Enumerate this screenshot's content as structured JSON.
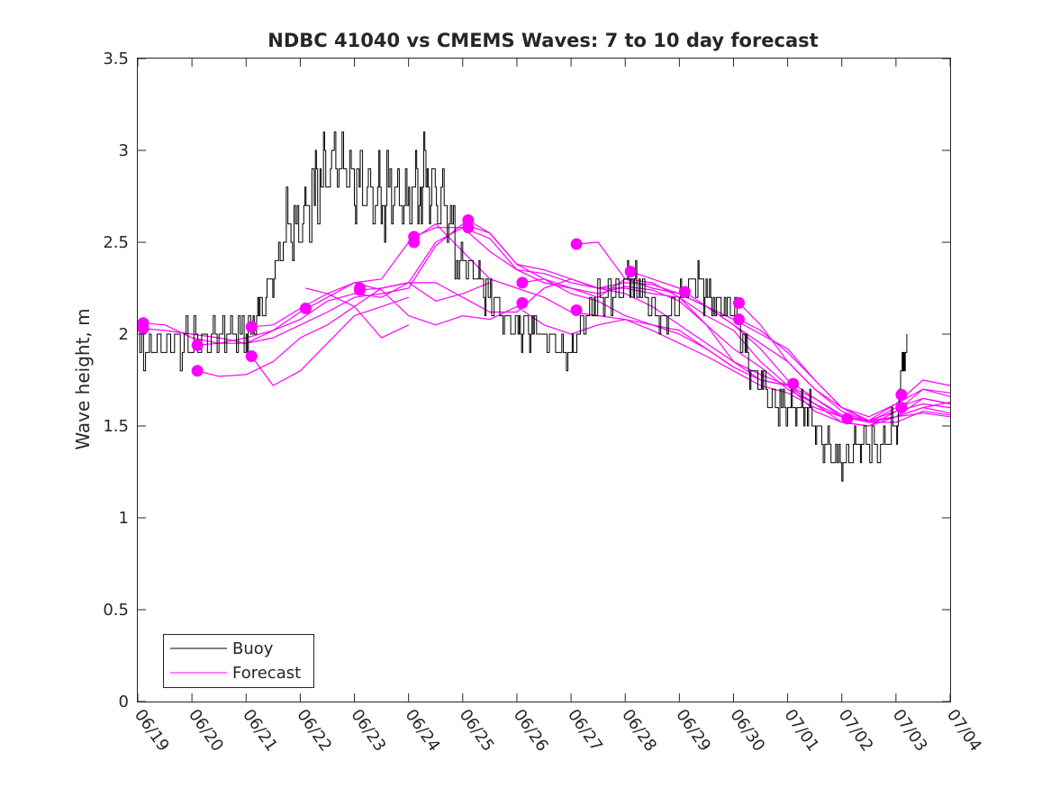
{
  "chart_data": {
    "type": "line",
    "title": "NDBC 41040 vs CMEMS Waves: 7 to 10 day forecast",
    "xlabel": "",
    "ylabel": "Wave height, m",
    "x_ticks": [
      "06/19",
      "06/20",
      "06/21",
      "06/22",
      "06/23",
      "06/24",
      "06/25",
      "06/26",
      "06/27",
      "06/28",
      "06/29",
      "06/30",
      "07/01",
      "07/02",
      "07/03",
      "07/04"
    ],
    "xlim": [
      0,
      15
    ],
    "ylim": [
      0,
      3.5
    ],
    "y_ticks": [
      "0",
      "0.5",
      "1",
      "1.5",
      "2",
      "2.5",
      "3",
      "3.5"
    ],
    "grid": false,
    "legend_position": "bottom-left",
    "colors": {
      "buoy": "#000000",
      "forecast": "#ff00ff"
    },
    "buoy": {
      "name": "Buoy",
      "x": [
        0,
        0.5,
        1,
        1.5,
        2,
        2.3,
        2.6,
        3,
        3.3,
        3.6,
        4,
        4.3,
        4.6,
        5,
        5.3,
        5.6,
        6,
        6.3,
        6.6,
        7,
        7.3,
        7.6,
        8,
        8.3,
        8.6,
        9,
        9.3,
        9.6,
        10,
        10.3,
        10.6,
        11,
        11.3,
        11.6,
        12,
        12.3,
        12.6,
        13,
        13.3,
        13.6,
        14,
        14.2
      ],
      "y": [
        1.9,
        1.95,
        1.95,
        2.0,
        2.0,
        2.15,
        2.4,
        2.6,
        2.8,
        2.9,
        2.85,
        2.75,
        2.7,
        2.75,
        2.85,
        2.7,
        2.4,
        2.3,
        2.15,
        2.05,
        2.05,
        1.95,
        1.9,
        2.1,
        2.2,
        2.3,
        2.25,
        2.1,
        2.2,
        2.3,
        2.2,
        2.15,
        1.8,
        1.7,
        1.6,
        1.6,
        1.45,
        1.3,
        1.4,
        1.4,
        1.5,
        2.0
      ]
    },
    "forecast": {
      "name": "Forecast",
      "runs": [
        {
          "x": [
            0.1,
            0.5,
            1,
            1.5,
            2,
            2.5,
            3,
            3.5,
            4,
            4.5,
            5,
            5.5,
            6,
            6.5,
            7,
            7.5,
            8,
            8.5,
            9,
            9.5,
            10,
            10.5,
            11,
            11.5,
            12,
            12.5,
            13,
            13.5,
            14,
            14.5,
            15
          ],
          "y": [
            2.06,
            2.05,
            1.98,
            1.95,
            1.95,
            2.02,
            2.08,
            2.18,
            2.22,
            2.2,
            2.28,
            2.5,
            2.58,
            2.52,
            2.35,
            2.33,
            2.28,
            2.25,
            2.28,
            2.27,
            2.22,
            2.15,
            2.05,
            1.92,
            1.75,
            1.65,
            1.55,
            1.53,
            1.58,
            1.62,
            1.6
          ]
        },
        {
          "x": [
            0.1,
            0.5,
            1,
            1.5,
            2,
            2.5,
            3,
            3.5,
            4,
            4.5,
            5,
            5.5,
            6,
            6.5,
            7,
            7.5,
            8,
            8.5,
            9,
            9.5,
            10,
            10.5,
            11,
            11.5,
            12,
            12.5,
            13,
            13.5,
            14,
            14.5,
            15
          ],
          "y": [
            2.03,
            2.02,
            2.0,
            1.98,
            1.95,
            1.98,
            2.05,
            2.12,
            2.2,
            2.22,
            2.25,
            2.48,
            2.6,
            2.55,
            2.38,
            2.3,
            2.25,
            2.22,
            2.26,
            2.24,
            2.18,
            2.05,
            1.92,
            1.82,
            1.7,
            1.62,
            1.52,
            1.5,
            1.55,
            1.57,
            1.55
          ]
        },
        {
          "x": [
            1.1,
            1.5,
            2,
            2.5,
            3,
            3.5,
            4,
            4.5,
            5,
            5.5,
            6,
            6.5,
            7,
            7.5,
            8,
            8.5,
            9,
            9.5,
            10,
            10.5,
            11,
            11.5,
            12,
            12.5,
            13,
            13.5,
            14,
            14.5,
            15
          ],
          "y": [
            1.94,
            1.95,
            1.98,
            2.02,
            2.12,
            2.2,
            2.28,
            2.24,
            2.1,
            2.05,
            2.1,
            2.08,
            2.15,
            2.05,
            2.0,
            2.05,
            2.08,
            2.05,
            2.0,
            1.92,
            1.82,
            1.75,
            1.72,
            1.65,
            1.56,
            1.52,
            1.6,
            1.65,
            1.62
          ]
        },
        {
          "x": [
            1.1,
            1.5,
            2,
            2.5,
            3,
            3.5,
            4,
            4.5,
            5,
            5.5,
            6,
            6.5,
            7,
            7.5,
            8,
            8.5,
            9,
            9.5,
            10,
            10.5,
            11,
            11.5,
            12,
            12.5,
            13,
            13.5,
            14,
            14.5,
            15
          ],
          "y": [
            1.8,
            1.77,
            1.78,
            1.85,
            1.98,
            2.05,
            2.15,
            2.25,
            2.28,
            2.28,
            2.2,
            2.12,
            2.12,
            2.25,
            2.3,
            2.25,
            2.22,
            2.15,
            2.05,
            1.95,
            1.85,
            1.78,
            1.72,
            1.62,
            1.55,
            1.52,
            1.55,
            1.6,
            1.63
          ]
        },
        {
          "x": [
            2.1,
            2.5,
            3,
            3.5,
            4,
            4.5,
            5,
            5.5,
            6,
            6.5,
            7,
            7.5,
            8,
            8.5,
            9,
            9.5,
            10,
            10.5,
            11,
            11.5,
            12,
            12.5,
            13,
            13.5,
            14,
            14.5,
            15
          ],
          "y": [
            2.04,
            2.05,
            2.14,
            2.22,
            2.28,
            2.3,
            2.5,
            2.6,
            2.45,
            2.3,
            2.25,
            2.2,
            2.12,
            2.1,
            2.08,
            2.02,
            1.95,
            1.88,
            1.8,
            1.72,
            1.68,
            1.6,
            1.55,
            1.53,
            1.62,
            1.7,
            1.66
          ]
        },
        {
          "x": [
            2.1,
            2.5,
            3,
            3.5,
            4,
            4.5,
            5
          ],
          "y": [
            1.88,
            1.72,
            1.8,
            1.95,
            2.1,
            2.15,
            2.2
          ]
        },
        {
          "x": [
            3.1,
            3.5,
            4,
            4.5,
            5
          ],
          "y": [
            2.25,
            2.22,
            2.15,
            1.98,
            2.05
          ]
        },
        {
          "x": [
            4.1,
            4.5,
            5,
            5.5,
            6,
            6.5
          ],
          "y": [
            2.24,
            2.25,
            2.28,
            2.18,
            2.22,
            2.28
          ]
        },
        {
          "x": [
            5.1,
            5.5,
            6,
            6.5,
            7,
            7.5,
            8,
            8.5,
            9,
            9.5,
            10,
            10.5,
            11,
            11.5,
            12,
            12.5
          ],
          "y": [
            2.53,
            2.58,
            2.58,
            2.45,
            2.35,
            2.28,
            2.25,
            2.2,
            2.3,
            2.28,
            2.2,
            2.05,
            1.85,
            1.75,
            1.72,
            1.62
          ]
        },
        {
          "x": [
            6.1,
            6.5,
            7,
            7.5,
            8,
            8.5,
            9,
            9.5,
            10,
            10.5,
            11,
            11.5,
            12,
            12.5,
            13,
            13.5,
            14,
            14.5,
            15
          ],
          "y": [
            2.62,
            2.55,
            2.38,
            2.35,
            2.3,
            2.25,
            2.25,
            2.22,
            2.2,
            2.1,
            2.02,
            1.85,
            1.72,
            1.58,
            1.52,
            1.5,
            1.58,
            1.7,
            1.68
          ]
        },
        {
          "x": [
            7.1,
            7.5,
            8,
            8.5,
            9,
            9.5,
            10,
            10.5,
            11
          ],
          "y": [
            2.28,
            2.3,
            2.22,
            2.18,
            2.1,
            2.05,
            2.02,
            1.92,
            1.82
          ]
        },
        {
          "x": [
            8.1,
            8.5,
            9,
            9.5,
            10,
            10.5,
            11,
            11.5,
            12,
            12.5,
            13,
            13.5,
            14,
            14.5,
            15
          ],
          "y": [
            2.49,
            2.5,
            2.3,
            2.25,
            2.22,
            2.15,
            2.05,
            1.95,
            1.85,
            1.7,
            1.6,
            1.53,
            1.55,
            1.6,
            1.57
          ]
        },
        {
          "x": [
            9.1,
            9.5,
            10,
            10.5,
            11,
            11.5,
            12,
            12.5,
            13,
            13.5,
            14,
            14.5,
            15
          ],
          "y": [
            2.34,
            2.3,
            2.25,
            2.15,
            2.08,
            2.0,
            1.92,
            1.75,
            1.6,
            1.52,
            1.52,
            1.58,
            1.56
          ]
        },
        {
          "x": [
            11.1,
            11.5,
            12,
            12.5,
            13,
            13.5,
            14,
            14.5,
            15
          ],
          "y": [
            2.17,
            2.05,
            1.85,
            1.7,
            1.58,
            1.52,
            1.55,
            1.65,
            1.62
          ]
        },
        {
          "x": [
            11.1,
            11.5,
            12,
            12.5,
            13,
            13.5,
            14,
            14.5,
            15
          ],
          "y": [
            2.08,
            2.02,
            1.9,
            1.75,
            1.6,
            1.55,
            1.62,
            1.75,
            1.72
          ]
        }
      ],
      "markers": {
        "x": [
          0.1,
          0.1,
          1.1,
          1.1,
          2.1,
          2.1,
          3.1,
          4.1,
          4.1,
          5.1,
          5.1,
          6.1,
          6.1,
          7.1,
          7.1,
          8.1,
          8.1,
          9.1,
          10.1,
          11.1,
          11.1,
          12.1,
          13.1,
          14.1,
          14.1
        ],
        "y": [
          2.06,
          2.03,
          1.94,
          1.8,
          2.04,
          1.88,
          2.14,
          2.25,
          2.24,
          2.53,
          2.5,
          2.62,
          2.58,
          2.28,
          2.17,
          2.49,
          2.13,
          2.34,
          2.23,
          2.17,
          2.08,
          1.73,
          1.54,
          1.67,
          1.6
        ]
      }
    }
  }
}
